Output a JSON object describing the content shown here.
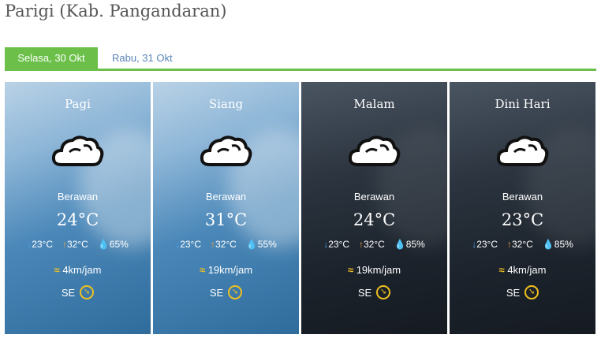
{
  "title": "Parigi (Kab. Pangandaran)",
  "tabs": [
    {
      "label": "Selasa, 30 Okt",
      "active": true
    },
    {
      "label": "Rabu, 31 Okt",
      "active": false
    }
  ],
  "accent": "#6cc04a",
  "cards": [
    {
      "period": "Pagi",
      "icon": "cloud-icon",
      "condition": "Berawan",
      "temp": "24°C",
      "min": "23°C",
      "max": "32°C",
      "humidity": "65%",
      "wind": "4km/jam",
      "direction": "SE",
      "theme": "day"
    },
    {
      "period": "Siang",
      "icon": "cloud-icon",
      "condition": "Berawan",
      "temp": "31°C",
      "min": "23°C",
      "max": "32°C",
      "humidity": "55%",
      "wind": "19km/jam",
      "direction": "SE",
      "theme": "day"
    },
    {
      "period": "Malam",
      "icon": "cloud-icon",
      "condition": "Berawan",
      "temp": "24°C",
      "min": "23°C",
      "max": "32°C",
      "humidity": "85%",
      "wind": "19km/jam",
      "direction": "SE",
      "theme": "night"
    },
    {
      "period": "Dini Hari",
      "icon": "cloud-icon",
      "condition": "Berawan",
      "temp": "23°C",
      "min": "23°C",
      "max": "32°C",
      "humidity": "85%",
      "wind": "4km/jam",
      "direction": "SE",
      "theme": "night"
    }
  ]
}
